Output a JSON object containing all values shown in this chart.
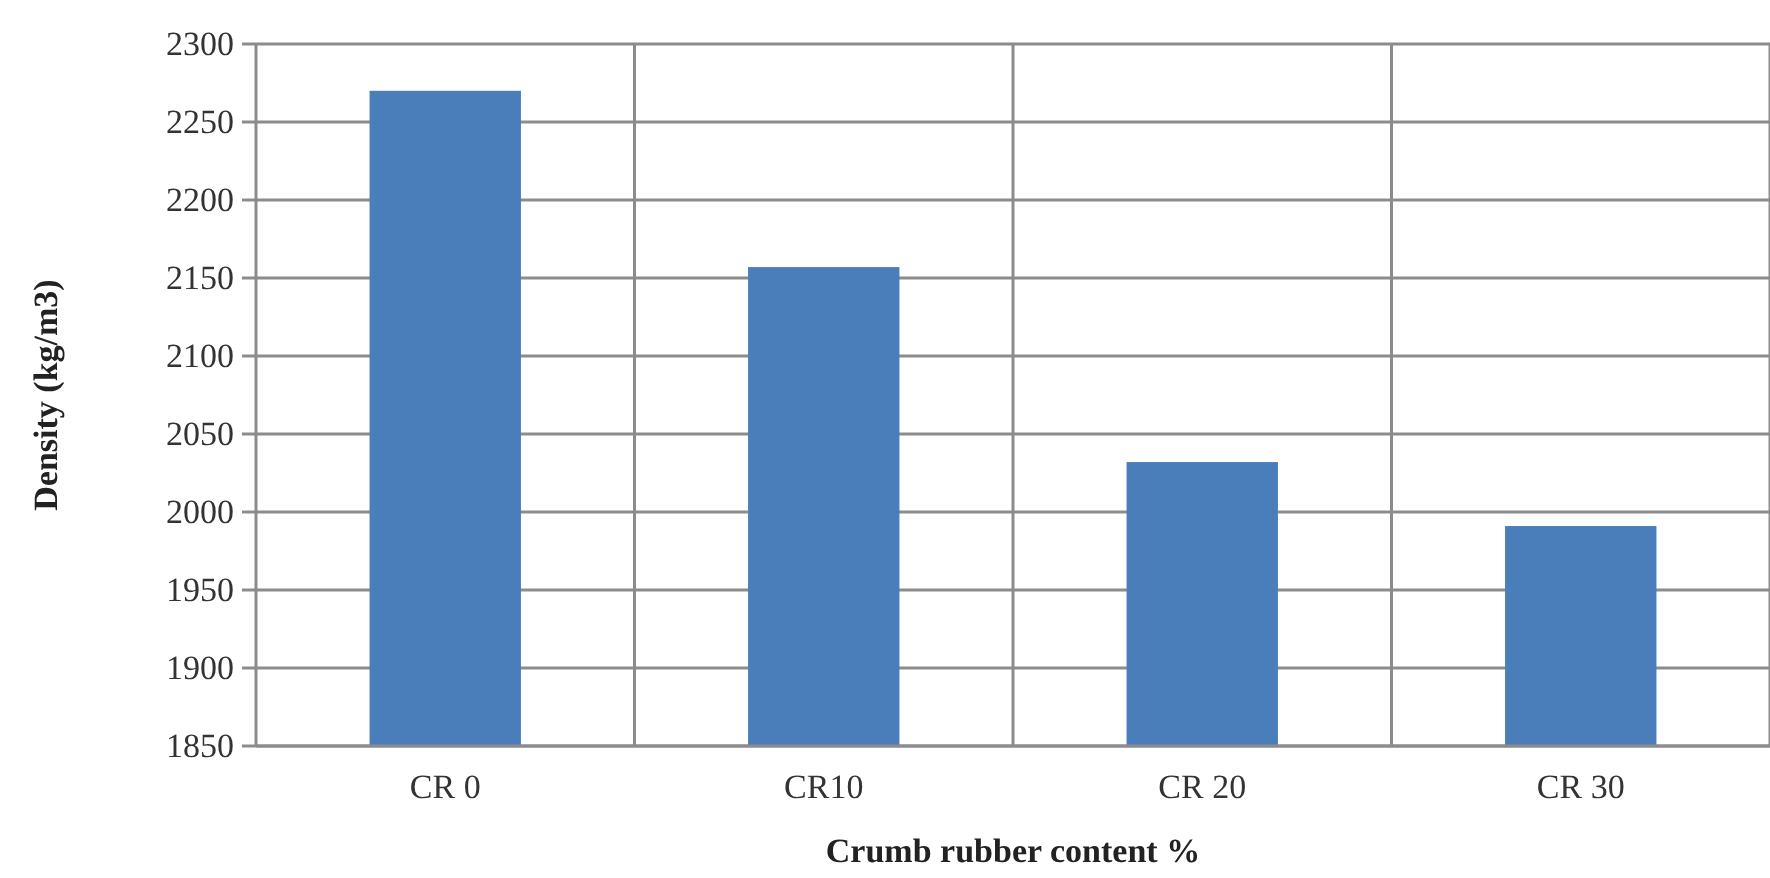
{
  "chart_data": {
    "type": "bar",
    "xlabel": "Crumb rubber content %",
    "ylabel": "Density (kg/m3)",
    "categories": [
      "CR 0",
      "CR10",
      "CR 20",
      "CR 30"
    ],
    "values": [
      2270,
      2157,
      2032,
      1991
    ],
    "color": "#4a7ebb",
    "ylim": [
      1850,
      2300
    ],
    "yticks": [
      1850,
      1900,
      1950,
      2000,
      2050,
      2100,
      2150,
      2200,
      2250,
      2300
    ],
    "grid": true
  }
}
